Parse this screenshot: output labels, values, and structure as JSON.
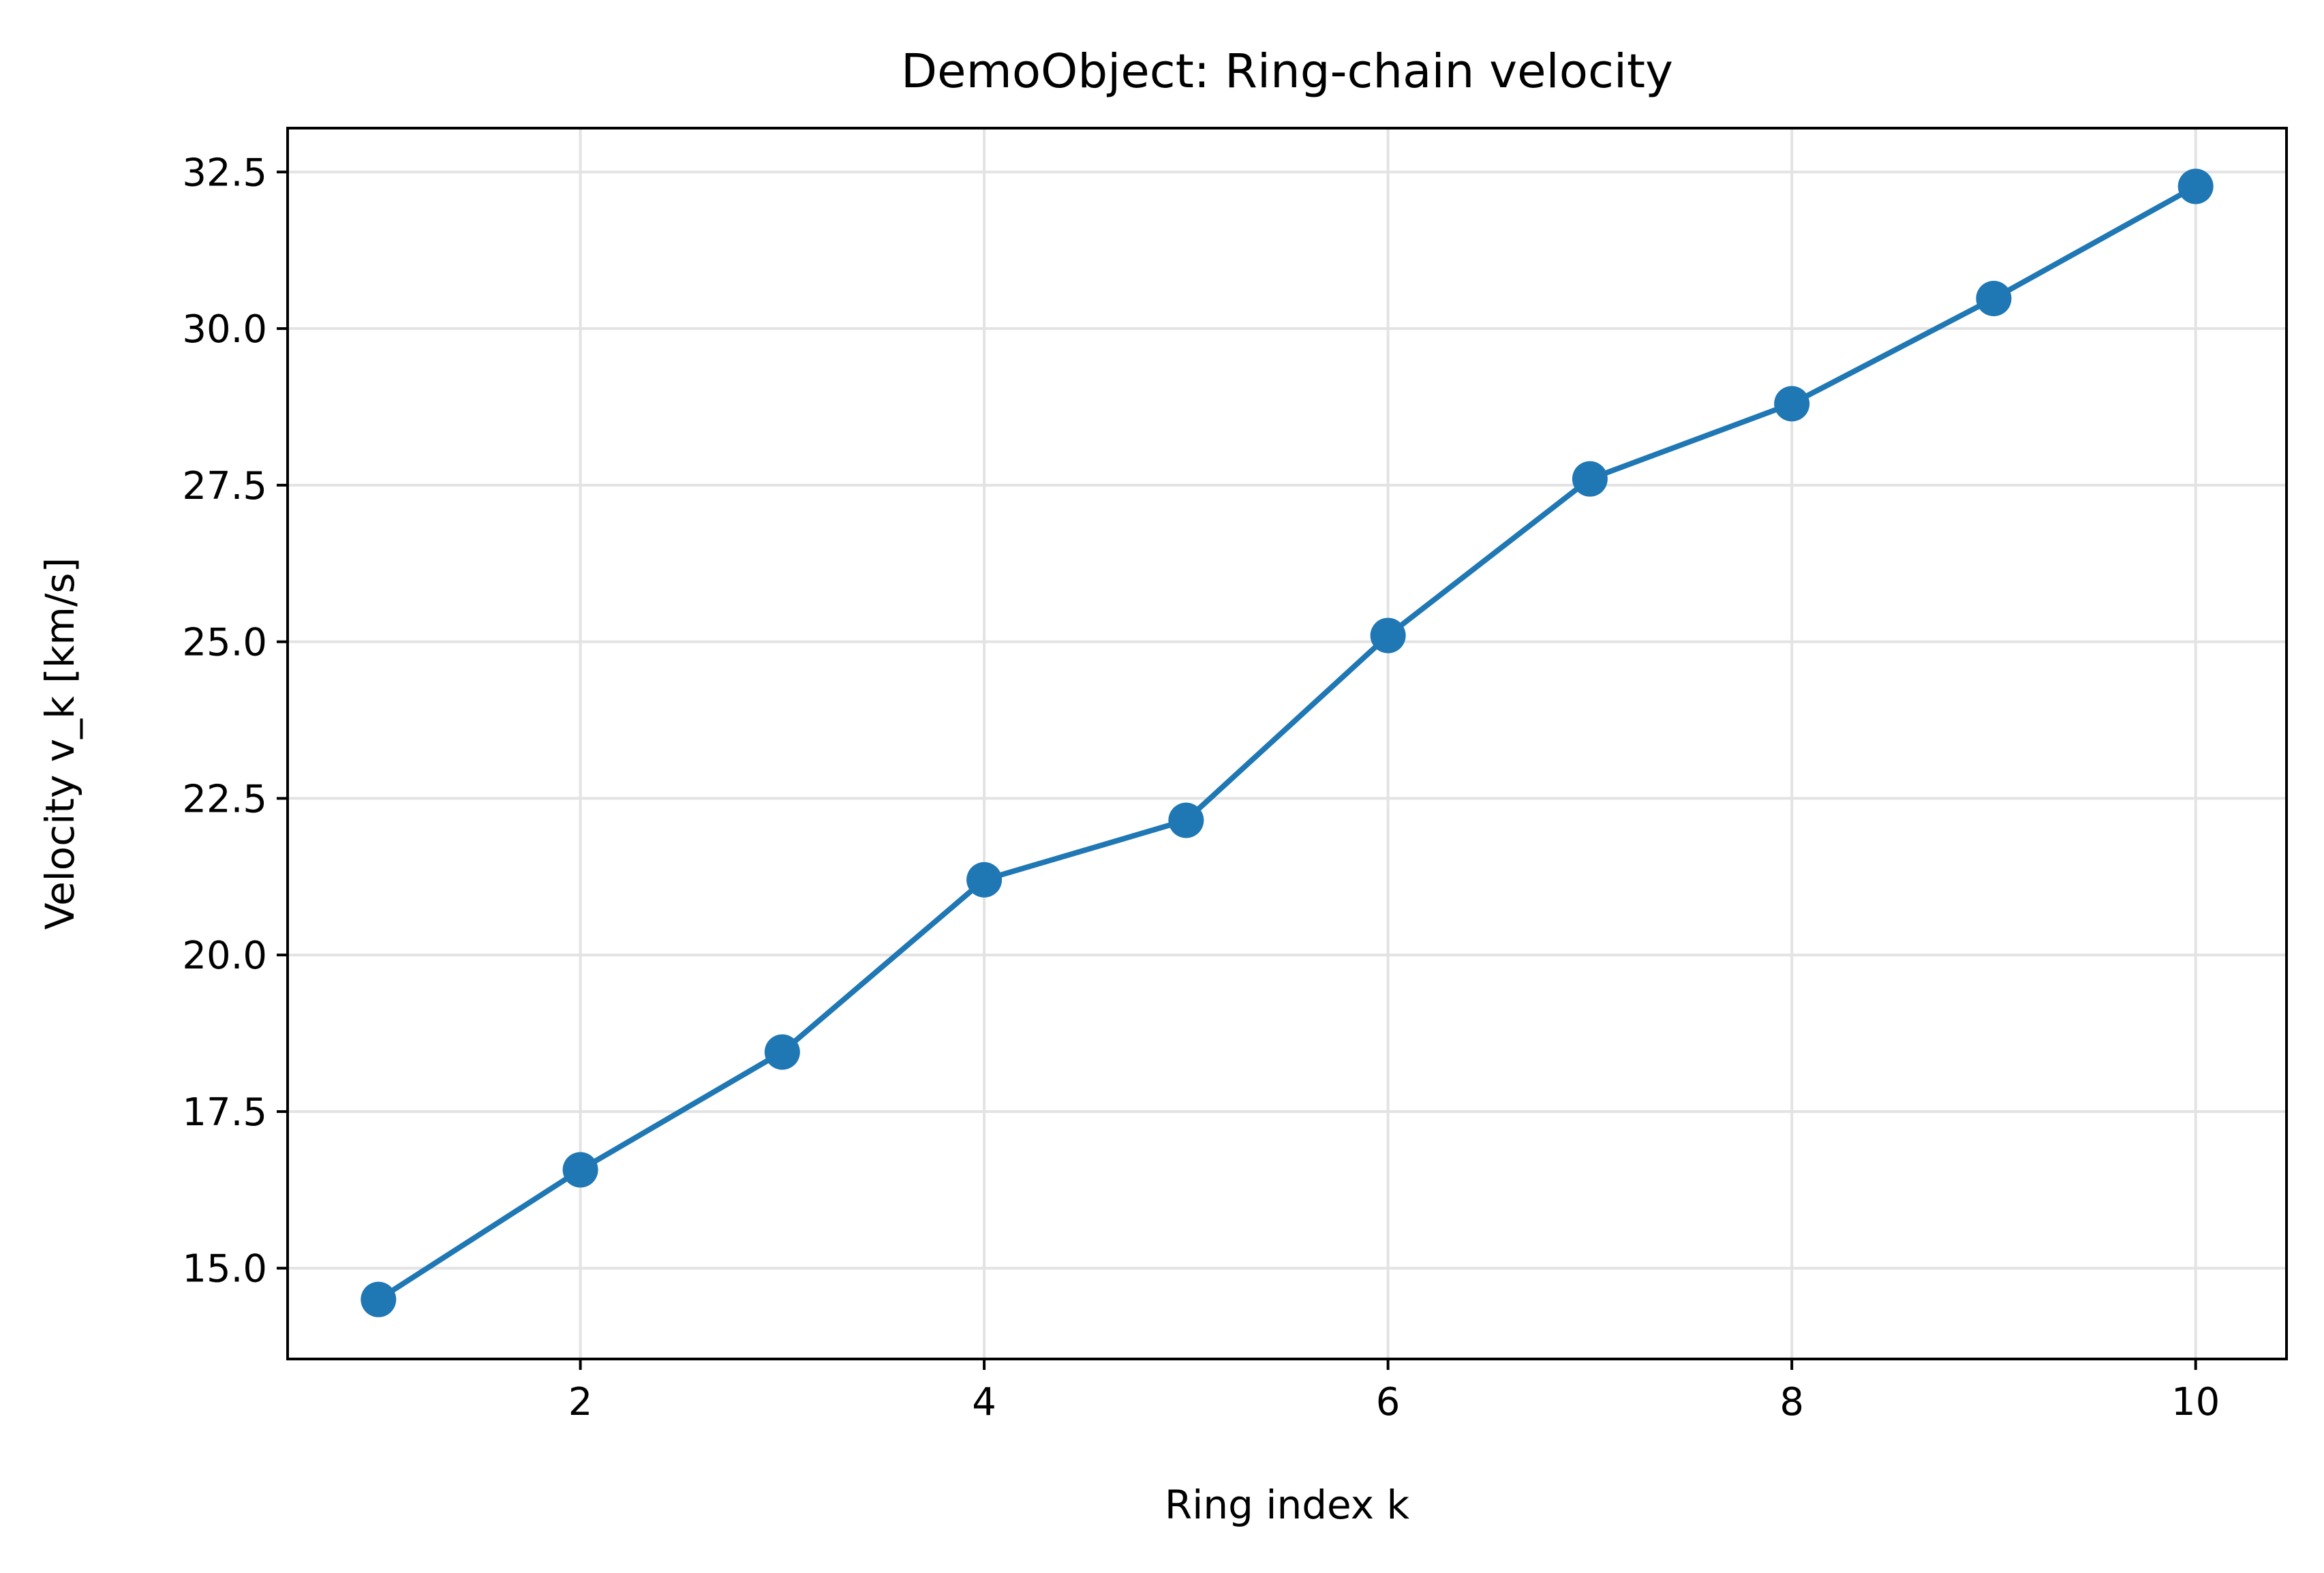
{
  "chart_data": {
    "type": "line",
    "title": "DemoObject: Ring-chain velocity",
    "xlabel": "Ring index k",
    "ylabel": "Velocity v_k [km/s]",
    "xlim": [
      0.55,
      10.45
    ],
    "ylim": [
      13.55,
      33.2
    ],
    "xticks": [
      2,
      4,
      6,
      8,
      10
    ],
    "xtick_labels": [
      "2",
      "4",
      "6",
      "8",
      "10"
    ],
    "yticks": [
      15.0,
      17.5,
      20.0,
      22.5,
      25.0,
      27.5,
      30.0,
      32.5
    ],
    "ytick_labels": [
      "15.0",
      "17.5",
      "20.0",
      "22.5",
      "25.0",
      "27.5",
      "30.0",
      "32.5"
    ],
    "grid": true,
    "legend": "none",
    "series": [
      {
        "color": "#1f77b4",
        "marker": "circle",
        "x": [
          1,
          2,
          3,
          4,
          5,
          6,
          7,
          8,
          9,
          10
        ],
        "values": [
          14.5,
          16.57,
          18.45,
          21.2,
          22.15,
          25.1,
          27.6,
          28.8,
          30.48,
          32.27
        ]
      }
    ]
  }
}
